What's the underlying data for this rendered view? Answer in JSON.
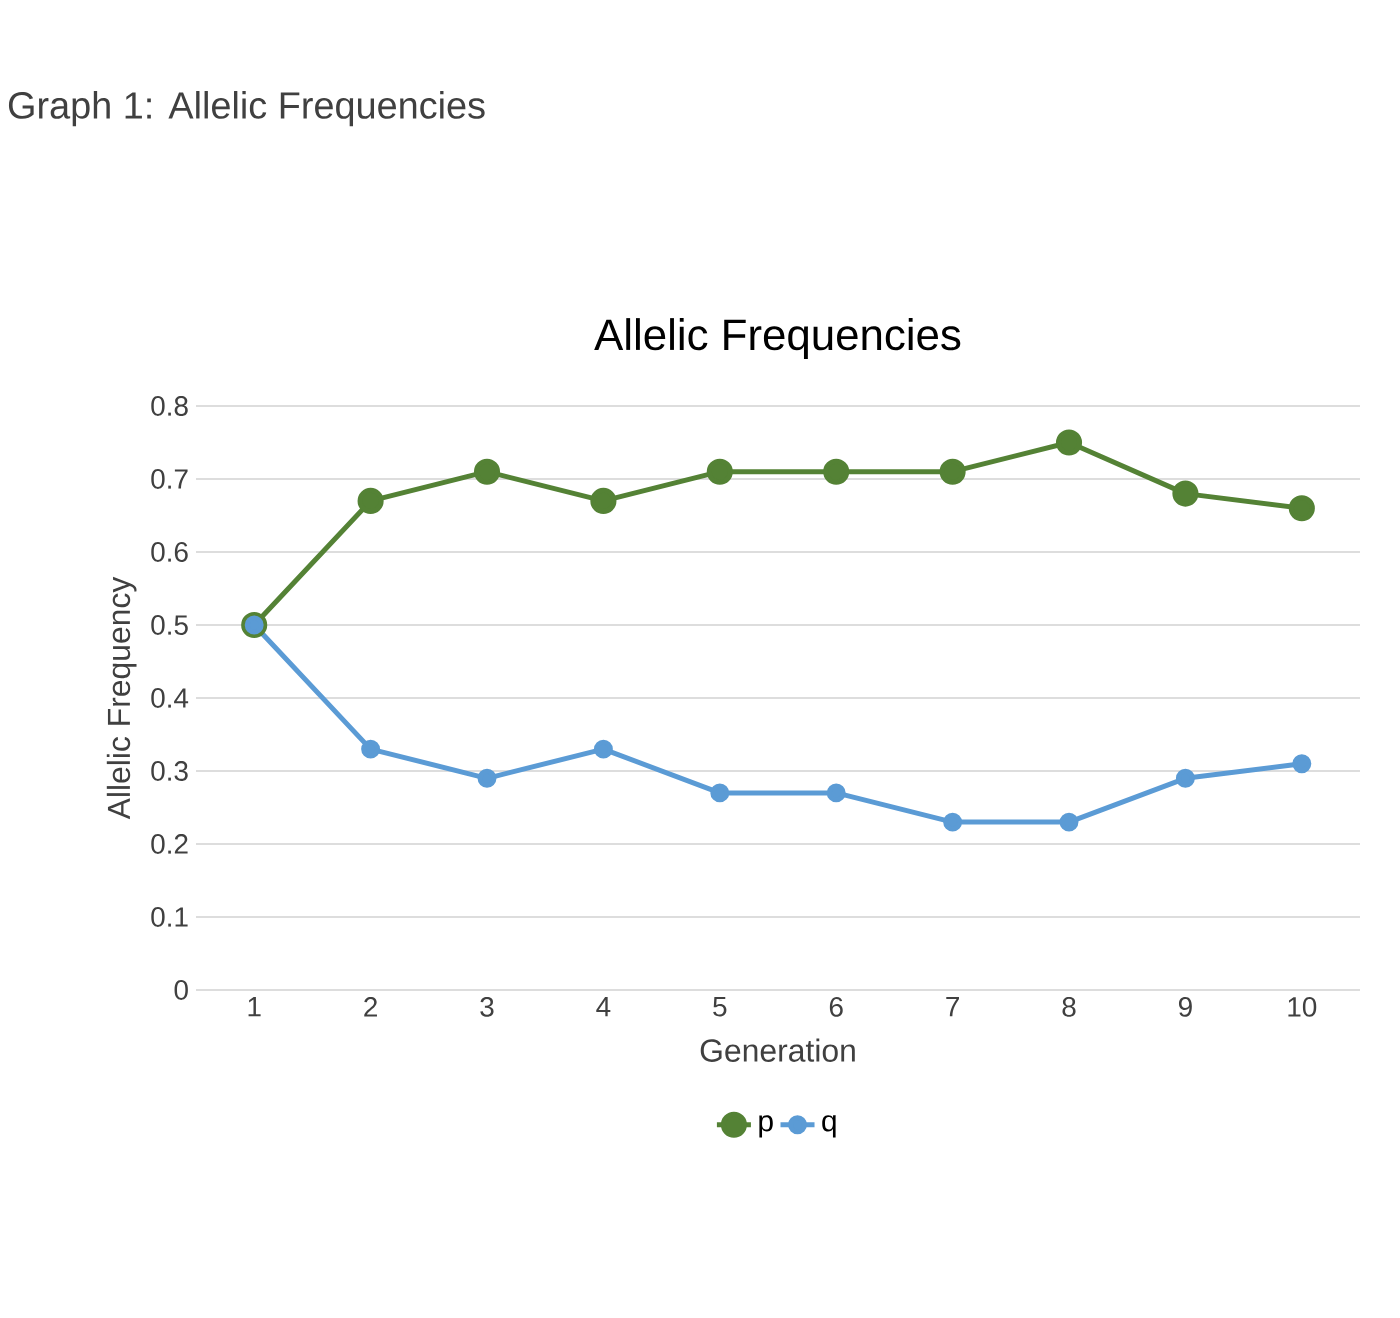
{
  "chart_data": {
    "type": "line",
    "title": "Allelic Frequencies",
    "xlabel": "Generation",
    "ylabel": "Allelic Frequency",
    "annotations": [
      "Graph 1: Allelic Frequencies"
    ],
    "categories": [
      "1",
      "2",
      "3",
      "4",
      "5",
      "6",
      "7",
      "8",
      "9",
      "10"
    ],
    "series": [
      {
        "name": "p",
        "color": "#548235",
        "values": [
          0.5,
          0.67,
          0.71,
          0.67,
          0.71,
          0.71,
          0.71,
          0.75,
          0.68,
          0.66
        ]
      },
      {
        "name": "q",
        "color": "#5b9bd5",
        "values": [
          0.5,
          0.33,
          0.29,
          0.33,
          0.27,
          0.27,
          0.23,
          0.23,
          0.29,
          0.31
        ]
      }
    ],
    "ylim": [
      0,
      0.8
    ],
    "yticks": [
      0,
      0.1,
      0.2,
      0.3,
      0.4,
      0.5,
      0.6,
      0.7,
      0.8
    ],
    "grid": "y",
    "legend": "bottom",
    "marker": "circle",
    "line_style": "solid"
  }
}
